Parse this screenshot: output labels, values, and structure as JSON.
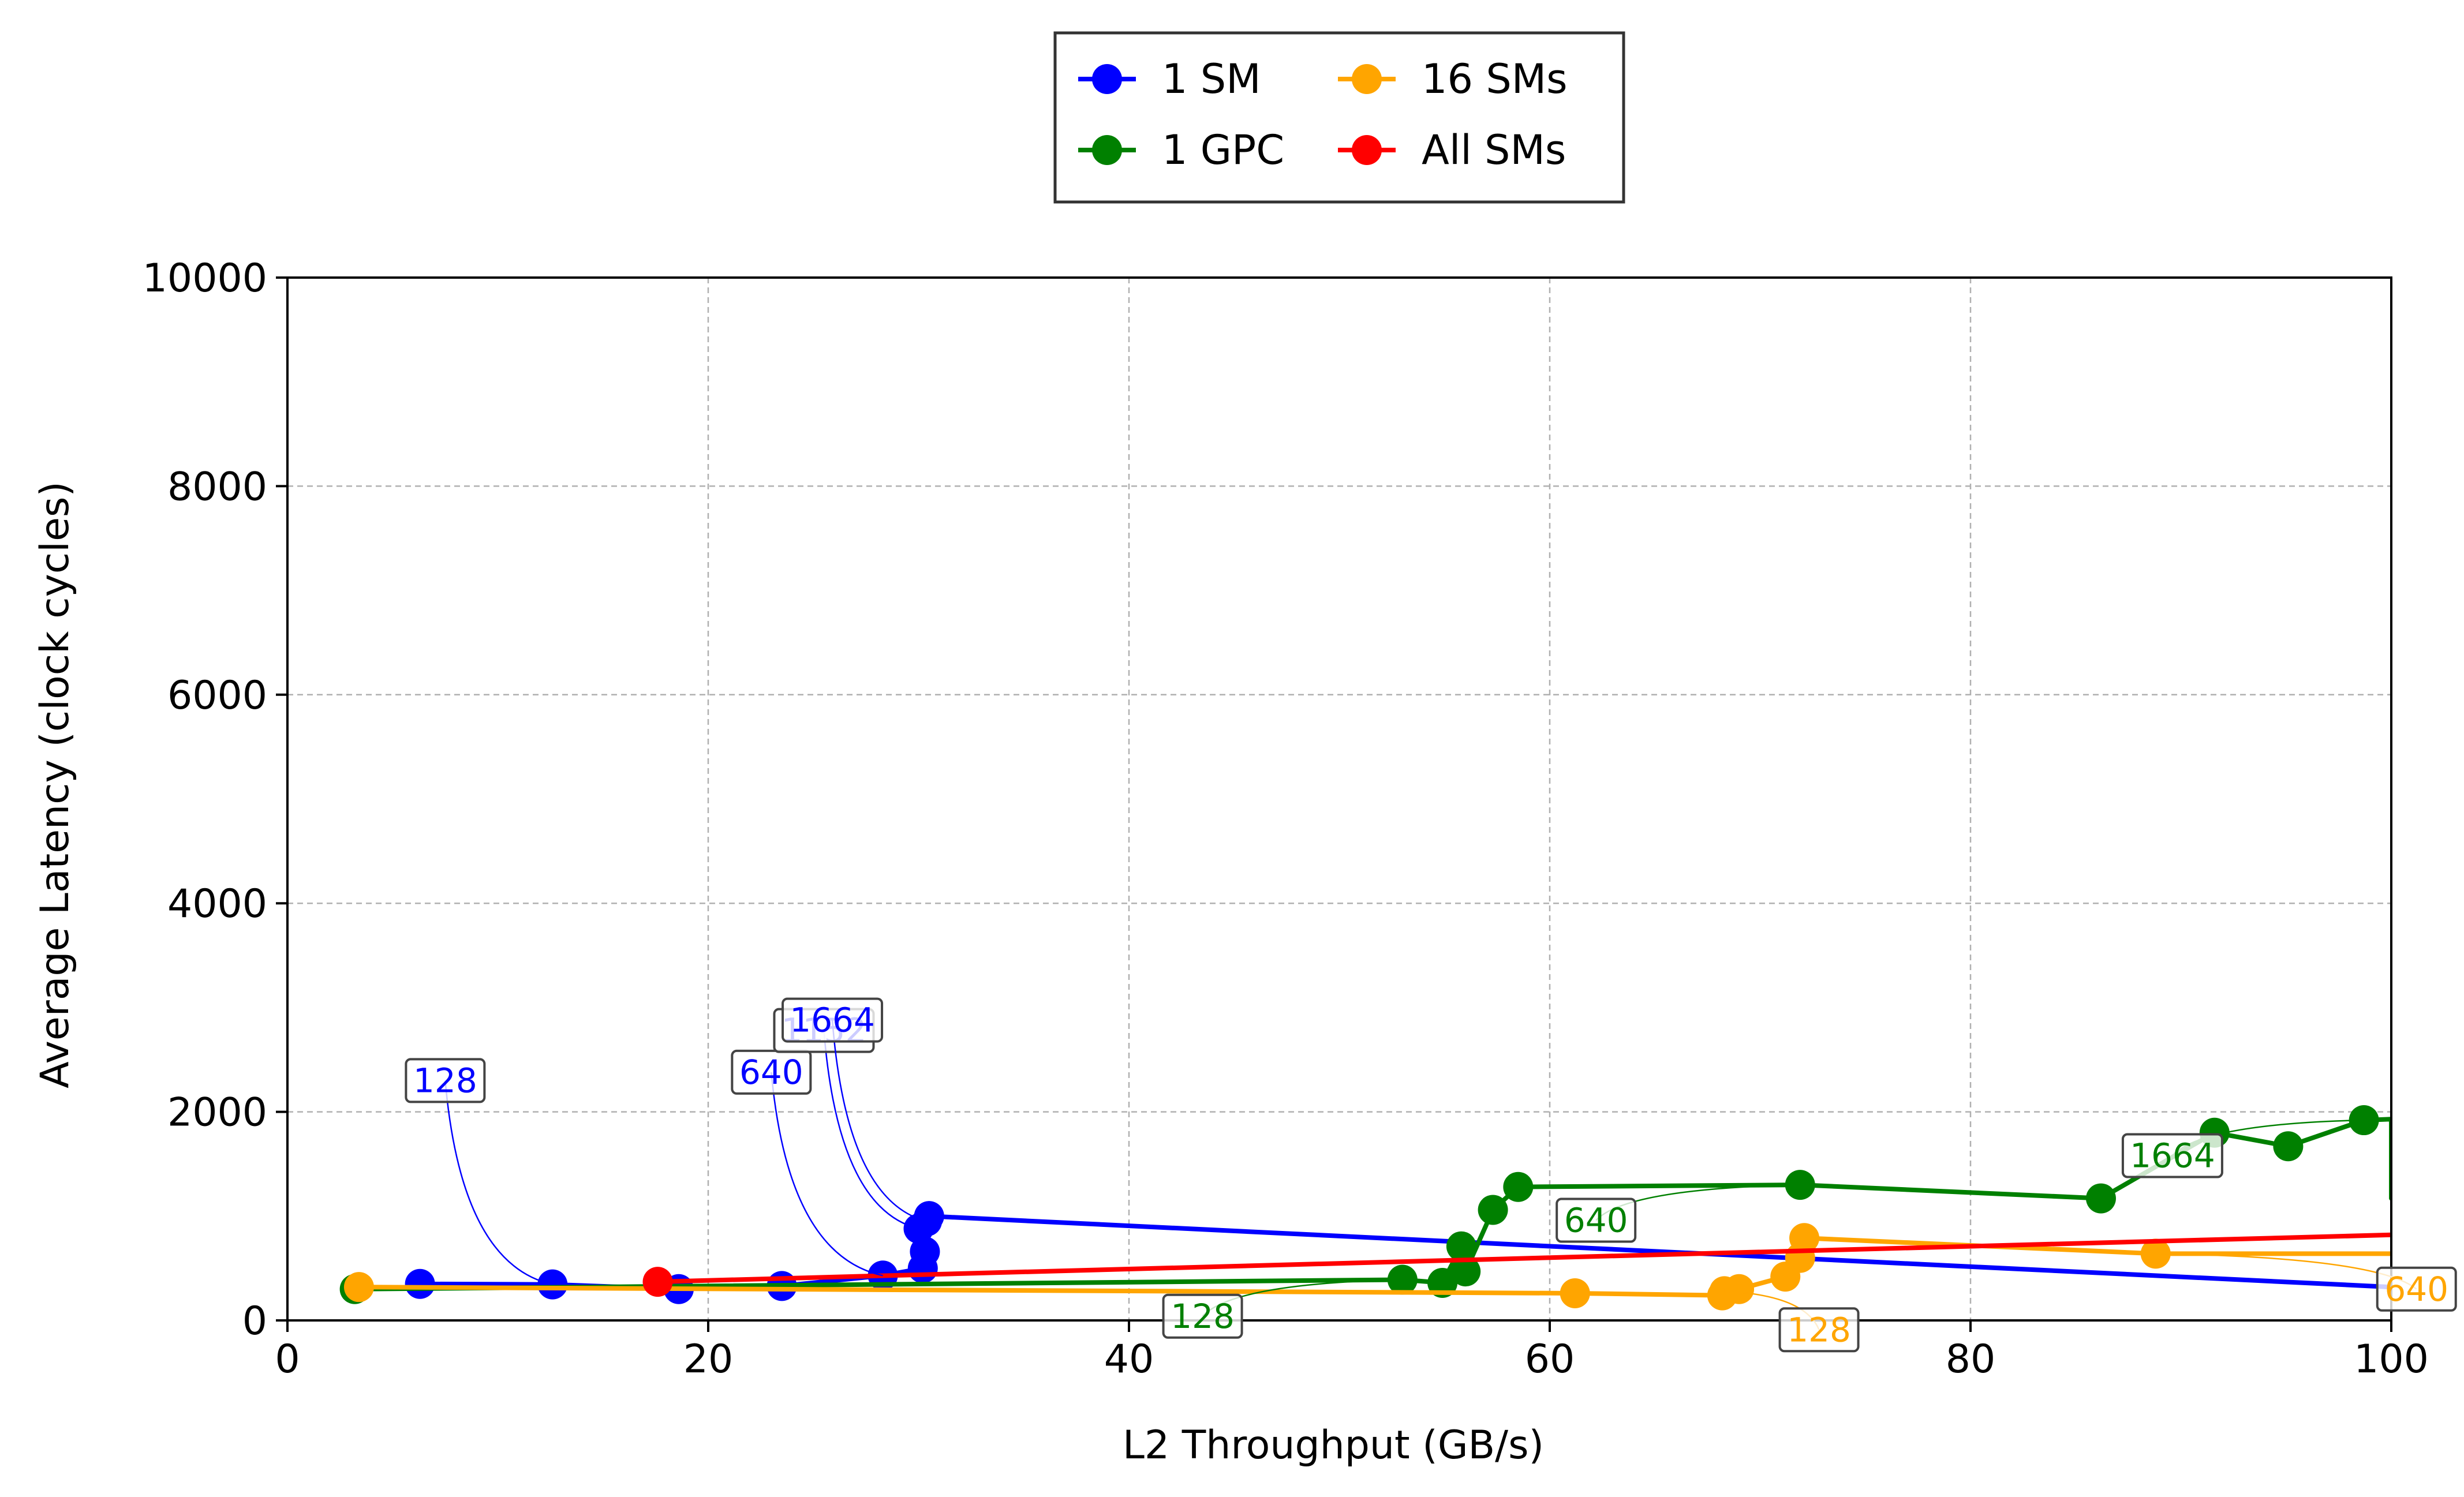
{
  "chart_data": {
    "type": "line",
    "title": "",
    "xlabel": "L2 Throughput (GB/s)",
    "ylabel": "Average Latency (clock cycles)",
    "xlim": [
      0,
      100
    ],
    "ylim": [
      0,
      10000
    ],
    "xticks": [
      0,
      20,
      40,
      60,
      80,
      100
    ],
    "yticks": [
      0,
      2000,
      4000,
      6000,
      8000,
      10000
    ],
    "grid": true,
    "legend_position": "top-center-outside",
    "series": [
      {
        "name": "1 SM",
        "color": "#0000ff",
        "points": [
          [
            6.3,
            350
          ],
          [
            12.6,
            345
          ],
          [
            18.6,
            300
          ],
          [
            23.5,
            330
          ],
          [
            28.3,
            430
          ],
          [
            30.2,
            500
          ],
          [
            30.3,
            660
          ],
          [
            30.0,
            880
          ],
          [
            30.4,
            950
          ],
          [
            30.5,
            1000
          ],
          [
            30.5,
            1000
          ],
          [
            100,
            320
          ]
        ]
      },
      {
        "name": "1 GPC",
        "color": "#008000",
        "points": [
          [
            3.2,
            300
          ],
          [
            53.0,
            390
          ],
          [
            54.9,
            360
          ],
          [
            55.8,
            710
          ],
          [
            56.0,
            470
          ],
          [
            57.3,
            1060
          ],
          [
            58.5,
            1280
          ],
          [
            71.9,
            1300
          ],
          [
            86.2,
            1170
          ],
          [
            91.6,
            1800
          ],
          [
            95.1,
            1670
          ],
          [
            98.7,
            1920
          ],
          [
            100,
            1930
          ],
          [
            100,
            1170
          ],
          [
            100,
            1540
          ]
        ]
      },
      {
        "name": "16 SMs",
        "color": "#ffa500",
        "points": [
          [
            3.4,
            320
          ],
          [
            61.2,
            260
          ],
          [
            68.2,
            240
          ],
          [
            68.3,
            280
          ],
          [
            69.0,
            300
          ],
          [
            71.2,
            420
          ],
          [
            71.9,
            600
          ],
          [
            72.1,
            790
          ],
          [
            88.8,
            640
          ],
          [
            100,
            640
          ]
        ]
      },
      {
        "name": "All SMs",
        "color": "#ff0000",
        "points": [
          [
            17.6,
            370
          ],
          [
            100,
            820
          ]
        ]
      }
    ],
    "annotations": [
      {
        "text": "128",
        "color": "#0000ff",
        "series": "1 SM",
        "point": [
          12.6,
          345
        ],
        "label": [
          7.5,
          2300
        ]
      },
      {
        "text": "640",
        "color": "#0000ff",
        "series": "1 SM",
        "point": [
          28.3,
          430
        ],
        "label": [
          23.0,
          2380
        ]
      },
      {
        "text": "1152",
        "color": "#0000ff",
        "series": "1 SM",
        "point": [
          30.0,
          880
        ],
        "label": [
          25.5,
          2780
        ]
      },
      {
        "text": "1664",
        "color": "#0000ff",
        "series": "1 SM",
        "point": [
          30.4,
          950
        ],
        "label": [
          25.9,
          2880
        ]
      },
      {
        "text": "128",
        "color": "#008000",
        "series": "1 GPC",
        "point": [
          53.0,
          390
        ],
        "label": [
          43.5,
          40
        ]
      },
      {
        "text": "640",
        "color": "#008000",
        "series": "1 GPC",
        "point": [
          71.9,
          1300
        ],
        "label": [
          62.2,
          960
        ]
      },
      {
        "text": "1664",
        "color": "#008000",
        "series": "1 GPC",
        "point": [
          98.7,
          1920
        ],
        "label": [
          89.6,
          1580
        ]
      },
      {
        "text": "128",
        "color": "#ffa500",
        "series": "16 SMs",
        "point": [
          68.3,
          280
        ],
        "label": [
          72.8,
          -90
        ]
      },
      {
        "text": "640",
        "color": "#ffa500",
        "series": "16 SMs",
        "point": [
          88.8,
          640
        ],
        "label": [
          101.2,
          300
        ]
      }
    ]
  }
}
